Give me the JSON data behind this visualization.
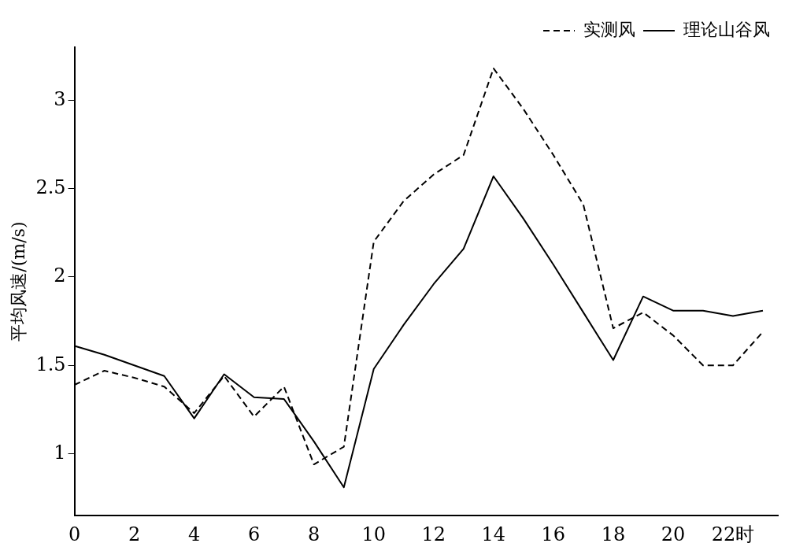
{
  "chart_data": {
    "type": "line",
    "xlabel": null,
    "ylabel": "平均风速/(m/s)",
    "x": [
      0,
      1,
      2,
      3,
      4,
      5,
      6,
      7,
      8,
      9,
      10,
      11,
      12,
      13,
      14,
      15,
      16,
      17,
      18,
      19,
      20,
      21,
      22,
      23
    ],
    "xlim": [
      0,
      23.5
    ],
    "xticks": [
      0,
      2,
      4,
      6,
      8,
      10,
      12,
      14,
      16,
      18,
      20,
      {
        "value": 22,
        "label": "22时"
      }
    ],
    "ylim": [
      0.65,
      3.3
    ],
    "yticks": [
      1,
      1.5,
      2,
      2.5,
      3
    ],
    "grid": false,
    "legend": "top right",
    "marker": "none",
    "series": [
      {
        "name": "实测风",
        "color": "#000000",
        "line_style": "dashed",
        "values": [
          1.39,
          1.47,
          1.43,
          1.38,
          1.23,
          1.44,
          1.21,
          1.38,
          0.94,
          1.04,
          2.2,
          2.43,
          2.58,
          2.69,
          3.18,
          2.95,
          2.69,
          2.41,
          1.71,
          1.8,
          1.67,
          1.5,
          1.5,
          1.69
        ]
      },
      {
        "name": "理论山谷风",
        "color": "#000000",
        "line_style": "solid",
        "values": [
          1.61,
          1.56,
          1.5,
          1.44,
          1.2,
          1.45,
          1.32,
          1.31,
          1.07,
          0.81,
          1.48,
          1.73,
          1.96,
          2.16,
          2.57,
          2.33,
          2.07,
          1.8,
          1.53,
          1.89,
          1.81,
          1.81,
          1.78,
          1.81
        ]
      }
    ]
  }
}
